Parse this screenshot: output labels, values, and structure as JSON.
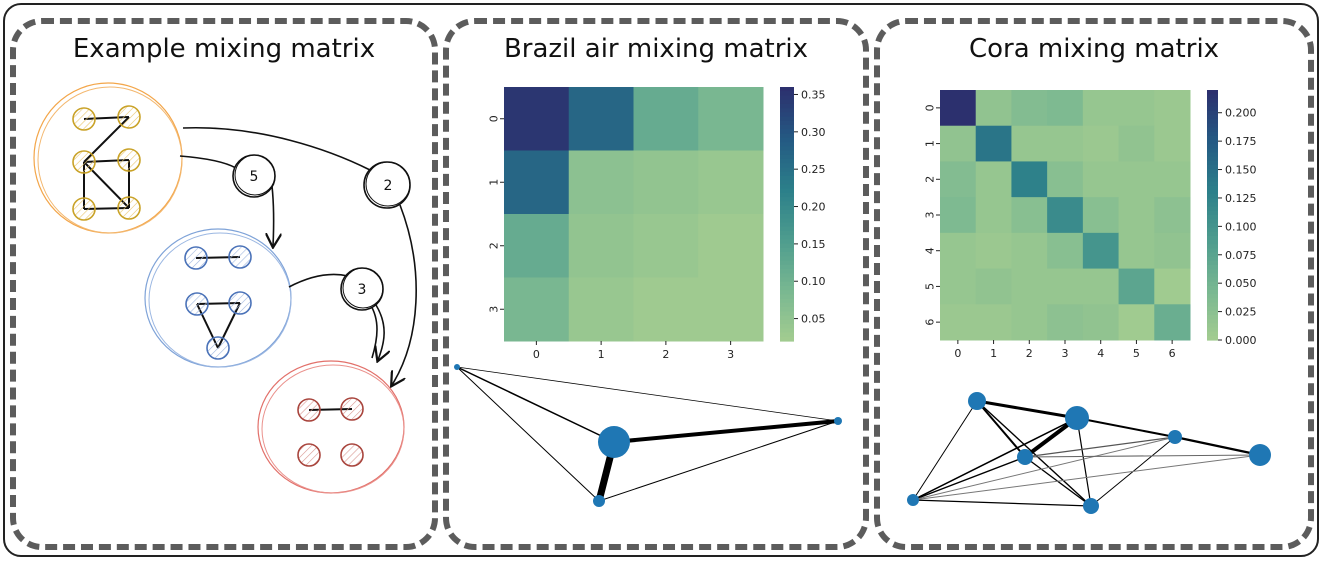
{
  "panels": [
    {
      "title": "Example mixing matrix"
    },
    {
      "title": "Brazil air mixing matrix"
    },
    {
      "title": "Cora mixing matrix"
    }
  ],
  "example_diagram": {
    "groups": [
      {
        "name": "orange",
        "color": "#f3a64a",
        "node_color": "#d4a017",
        "node_count": 6
      },
      {
        "name": "blue",
        "color": "#7fa3d8",
        "node_color": "#4a72b8",
        "node_count": 5
      },
      {
        "name": "red",
        "color": "#e2706a",
        "node_color": "#a8443c",
        "node_count": 4
      }
    ],
    "edge_labels": [
      "5",
      "2",
      "3"
    ]
  },
  "brazil": {
    "chart_data": {
      "type": "heatmap",
      "x_ticks": [
        "0",
        "1",
        "2",
        "3"
      ],
      "y_ticks": [
        "0",
        "1",
        "2",
        "3"
      ],
      "colorbar_ticks": [
        "0.05",
        "0.10",
        "0.15",
        "0.20",
        "0.25",
        "0.30",
        "0.35"
      ],
      "colorbar_range": [
        0.02,
        0.36
      ],
      "colormap": "crest",
      "values": [
        [
          0.35,
          0.27,
          0.12,
          0.09
        ],
        [
          0.27,
          0.06,
          0.05,
          0.04
        ],
        [
          0.12,
          0.05,
          0.04,
          0.03
        ],
        [
          0.09,
          0.04,
          0.03,
          0.03
        ]
      ]
    },
    "graph": {
      "node_color": "#1f77b4"
    }
  },
  "cora": {
    "chart_data": {
      "type": "heatmap",
      "x_ticks": [
        "0",
        "1",
        "2",
        "3",
        "4",
        "5",
        "6"
      ],
      "y_ticks": [
        "0",
        "1",
        "2",
        "3",
        "4",
        "5",
        "6"
      ],
      "colorbar_ticks": [
        "0.000",
        "0.025",
        "0.050",
        "0.075",
        "0.100",
        "0.125",
        "0.150",
        "0.175",
        "0.200"
      ],
      "colorbar_range": [
        0.0,
        0.22
      ],
      "colormap": "crest",
      "values": [
        [
          0.22,
          0.02,
          0.035,
          0.04,
          0.015,
          0.015,
          0.01
        ],
        [
          0.02,
          0.145,
          0.015,
          0.015,
          0.01,
          0.02,
          0.01
        ],
        [
          0.035,
          0.015,
          0.13,
          0.03,
          0.015,
          0.015,
          0.015
        ],
        [
          0.04,
          0.015,
          0.03,
          0.115,
          0.03,
          0.015,
          0.025
        ],
        [
          0.015,
          0.01,
          0.015,
          0.03,
          0.1,
          0.015,
          0.02
        ],
        [
          0.015,
          0.02,
          0.015,
          0.015,
          0.015,
          0.075,
          0.005
        ],
        [
          0.01,
          0.01,
          0.015,
          0.025,
          0.02,
          0.005,
          0.06
        ]
      ]
    },
    "graph": {
      "node_color": "#1f77b4"
    }
  }
}
